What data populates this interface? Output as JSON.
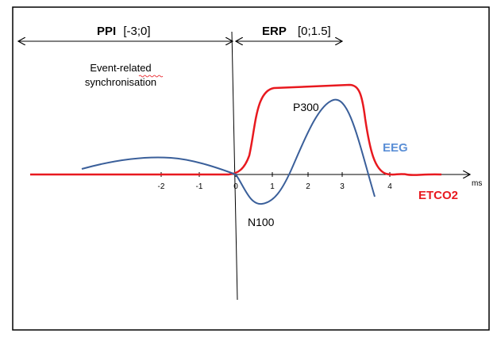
{
  "figure": {
    "ppi_label": "PPI",
    "ppi_range": "[-3;0]",
    "erp_label": "ERP",
    "erp_range": "[0;1.5]",
    "annotation_line1": "Event-related",
    "annotation_line2": "synchronisation",
    "p300_label": "P300",
    "n100_label": "N100",
    "eeg_label": "EEG",
    "etco2_label": "ETCO2",
    "x_unit": "ms",
    "x_ticks": [
      "-2",
      "-1",
      "0",
      "1",
      "2",
      "3",
      "4"
    ],
    "colors": {
      "eeg": "#3a5f9a",
      "eeg_label": "#5b8fd6",
      "etco2": "#e8191f",
      "axis": "#000000"
    }
  }
}
